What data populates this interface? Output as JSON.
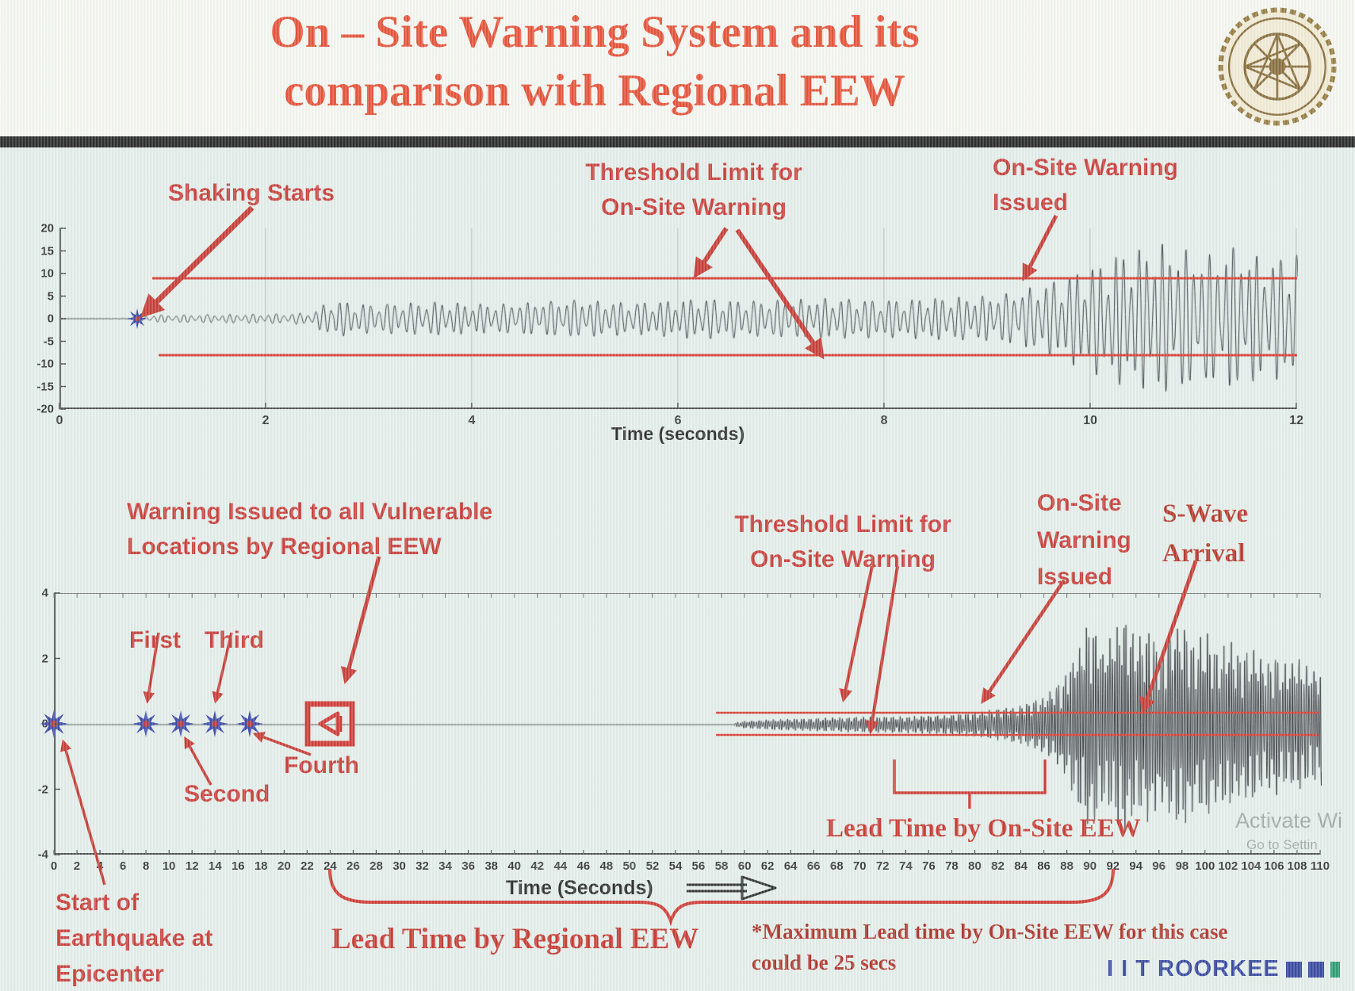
{
  "slide": {
    "title_line1": "On – Site Warning System and its",
    "title_line2": "comparison with Regional EEW",
    "footer_brand": "I I T ROORKEE",
    "watermark_line1": "Activate Wi",
    "watermark_line2": "Go to Settin"
  },
  "colors": {
    "title_red": "#e6391d",
    "annotation_red": "#c42320",
    "threshold_red": "#d42318",
    "brand_blue": "#1c2d94",
    "waveform_black": "#14141c"
  },
  "top_chart": {
    "annotations": {
      "shaking_starts": "Shaking Starts",
      "threshold_line1": "Threshold Limit for",
      "threshold_line2": "On-Site Warning",
      "warning_issued_line1": "On-Site Warning",
      "warning_issued_line2": "Issued"
    }
  },
  "bottom_chart": {
    "annotations": {
      "regional_line1": "Warning Issued to all Vulnerable",
      "regional_line2": "Locations by Regional EEW",
      "threshold_line1": "Threshold Limit for",
      "threshold_line2": "On-Site Warning",
      "onsite_line1": "On-Site",
      "onsite_line2": "Warning",
      "onsite_line3": "Issued",
      "swave_line1": "S-Wave",
      "swave_line2": "Arrival",
      "first": "First",
      "second": "Second",
      "third": "Third",
      "fourth": "Fourth",
      "start_line1": "Start of",
      "start_line2": "Earthquake at",
      "start_line3": "Epicenter",
      "lead_regional": "Lead Time by Regional EEW",
      "lead_onsite": "Lead Time by On-Site EEW",
      "note_line1": "*Maximum Lead time by On-Site EEW for this case",
      "note_line2": "could be 25 secs"
    }
  },
  "chart_data": [
    {
      "type": "line",
      "name": "on-site-station-seismogram",
      "title": "",
      "xlabel": "Time (seconds)",
      "ylabel": "",
      "xlim": [
        0,
        12
      ],
      "ylim": [
        -20,
        20
      ],
      "xticks": [
        0,
        2,
        4,
        6,
        8,
        10,
        12
      ],
      "yticks": [
        20,
        15,
        10,
        5,
        0,
        -5,
        -10,
        -15,
        -20
      ],
      "grid": "vertical-major",
      "threshold_upper": 9,
      "threshold_lower": -8,
      "events": {
        "shaking_starts_x": 0.75,
        "onsite_warning_issued_x": 9.4
      },
      "envelope_x_amp": [
        [
          0,
          0
        ],
        [
          0.72,
          0.05
        ],
        [
          0.85,
          0.8
        ],
        [
          1.3,
          0.9
        ],
        [
          2.1,
          1.1
        ],
        [
          2.45,
          1.4
        ],
        [
          2.6,
          4.2
        ],
        [
          3.0,
          3.2
        ],
        [
          3.6,
          3.8
        ],
        [
          4.2,
          3.2
        ],
        [
          5.0,
          4.2
        ],
        [
          5.6,
          3.6
        ],
        [
          6.2,
          4.6
        ],
        [
          6.8,
          4.0
        ],
        [
          7.4,
          4.6
        ],
        [
          8.0,
          4.2
        ],
        [
          8.6,
          4.8
        ],
        [
          9.1,
          5.2
        ],
        [
          9.5,
          7.5
        ],
        [
          9.9,
          11
        ],
        [
          10.3,
          15
        ],
        [
          10.7,
          17
        ],
        [
          11.1,
          14
        ],
        [
          11.4,
          16
        ],
        [
          11.7,
          13
        ],
        [
          12,
          15
        ]
      ]
    },
    {
      "type": "line",
      "name": "regional-eew-seismogram",
      "title": "",
      "xlabel": "Time (Seconds)",
      "ylabel": "",
      "xlim": [
        0,
        110
      ],
      "ylim": [
        -4,
        4
      ],
      "xticks": [
        0,
        2,
        4,
        6,
        8,
        10,
        12,
        14,
        16,
        18,
        20,
        22,
        24,
        26,
        28,
        30,
        32,
        34,
        36,
        38,
        40,
        42,
        44,
        46,
        48,
        50,
        52,
        54,
        56,
        58,
        60,
        62,
        64,
        66,
        68,
        70,
        72,
        74,
        76,
        78,
        80,
        82,
        84,
        86,
        88,
        90,
        92,
        94,
        96,
        98,
        100,
        102,
        104,
        106,
        108,
        110
      ],
      "yticks": [
        4,
        2,
        0,
        -2,
        -4
      ],
      "grid": "off",
      "threshold_upper": 0.35,
      "threshold_lower": -0.35,
      "events": {
        "epicenter_x": 0,
        "station_trigger_xs": [
          8,
          11,
          14,
          17
        ],
        "regional_warning_x": 24,
        "p_wave_visible_x": 60,
        "onsite_warning_issued_x": 80,
        "s_wave_arrival_x": 93,
        "max_onsite_lead_time_secs": 25
      },
      "envelope_x_amp": [
        [
          0,
          0
        ],
        [
          58.5,
          0
        ],
        [
          59.5,
          0.1
        ],
        [
          62,
          0.16
        ],
        [
          66,
          0.2
        ],
        [
          70,
          0.24
        ],
        [
          74,
          0.26
        ],
        [
          78,
          0.32
        ],
        [
          80,
          0.38
        ],
        [
          82,
          0.5
        ],
        [
          84,
          0.6
        ],
        [
          86,
          0.9
        ],
        [
          87.5,
          1.4
        ],
        [
          89,
          2.6
        ],
        [
          90,
          3.4
        ],
        [
          91,
          2.4
        ],
        [
          92,
          3.0
        ],
        [
          93,
          3.3
        ],
        [
          94,
          2.6
        ],
        [
          95,
          3.1
        ],
        [
          96,
          2.3
        ],
        [
          97,
          2.9
        ],
        [
          98,
          3.2
        ],
        [
          99,
          2.5
        ],
        [
          100,
          2.9
        ],
        [
          101,
          2.3
        ],
        [
          102,
          2.6
        ],
        [
          103,
          2.1
        ],
        [
          104,
          2.5
        ],
        [
          105,
          1.9
        ],
        [
          106,
          2.2
        ],
        [
          107,
          1.8
        ],
        [
          108,
          2.1
        ],
        [
          109,
          1.7
        ],
        [
          110,
          1.9
        ]
      ]
    }
  ]
}
